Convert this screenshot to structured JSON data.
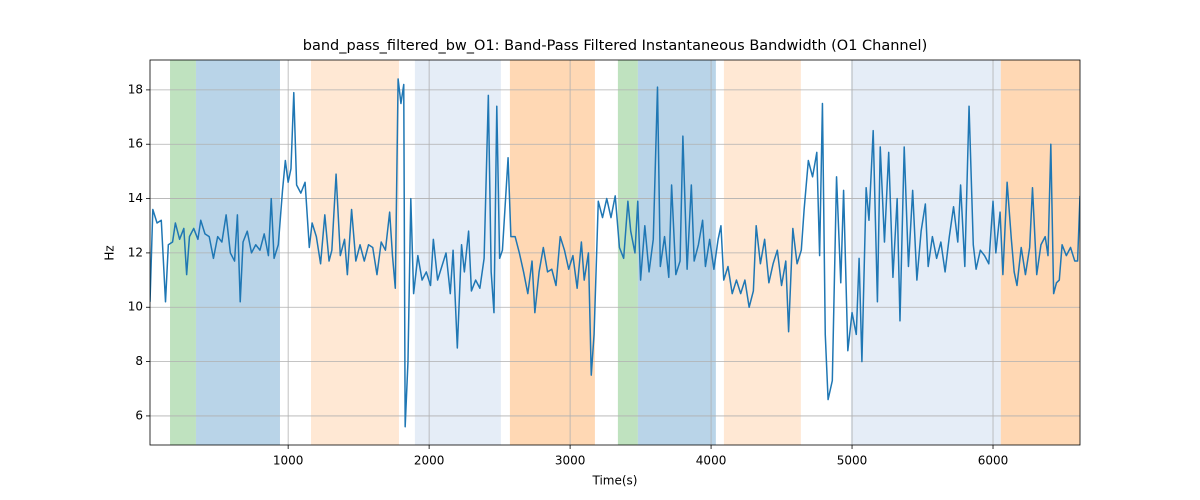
{
  "chart_data": {
    "type": "line",
    "title": "band_pass_filtered_bw_O1: Band-Pass Filtered Instantaneous Bandwidth (O1 Channel)",
    "xlabel": "Time(s)",
    "ylabel": "Hz",
    "color": "#1f77b4",
    "grid": true,
    "xlim": [
      20,
      6617
    ],
    "ylim": [
      4.93,
      19.1
    ],
    "xticks": [
      1000,
      2000,
      3000,
      4000,
      5000,
      6000
    ],
    "yticks": [
      6,
      8,
      10,
      12,
      14,
      16,
      18
    ],
    "spans": [
      {
        "start": 162,
        "end": 346,
        "color": "#bfe2bf"
      },
      {
        "start": 346,
        "end": 942,
        "color": "#b9d4e8"
      },
      {
        "start": 1162,
        "end": 1786,
        "color": "#ffe8d4"
      },
      {
        "start": 1899,
        "end": 2509,
        "color": "#e5edf7"
      },
      {
        "start": 2573,
        "end": 3176,
        "color": "#ffd8b4"
      },
      {
        "start": 3339,
        "end": 3481,
        "color": "#bfe2bf"
      },
      {
        "start": 3481,
        "end": 4034,
        "color": "#b9d4e8"
      },
      {
        "start": 4091,
        "end": 4637,
        "color": "#ffe8d4"
      },
      {
        "start": 4992,
        "end": 6055,
        "color": "#e5edf7"
      },
      {
        "start": 6055,
        "end": 6617,
        "color": "#ffd8b4"
      }
    ],
    "x": [
      20,
      40,
      70,
      100,
      130,
      150,
      180,
      200,
      230,
      260,
      280,
      300,
      330,
      360,
      380,
      410,
      440,
      470,
      500,
      530,
      560,
      590,
      620,
      640,
      660,
      680,
      710,
      740,
      770,
      800,
      830,
      860,
      880,
      900,
      930,
      960,
      980,
      1000,
      1020,
      1040,
      1060,
      1090,
      1120,
      1150,
      1170,
      1200,
      1230,
      1260,
      1290,
      1310,
      1340,
      1370,
      1400,
      1420,
      1450,
      1480,
      1510,
      1540,
      1570,
      1600,
      1630,
      1660,
      1690,
      1720,
      1740,
      1760,
      1780,
      1800,
      1820,
      1830,
      1850,
      1870,
      1890,
      1920,
      1950,
      1980,
      2010,
      2030,
      2060,
      2090,
      2120,
      2150,
      2170,
      2200,
      2230,
      2250,
      2280,
      2300,
      2330,
      2360,
      2390,
      2420,
      2440,
      2460,
      2480,
      2500,
      2520,
      2560,
      2580,
      2610,
      2640,
      2670,
      2700,
      2730,
      2750,
      2780,
      2810,
      2840,
      2870,
      2900,
      2930,
      2960,
      2990,
      3020,
      3050,
      3080,
      3100,
      3130,
      3150,
      3170,
      3200,
      3230,
      3260,
      3290,
      3320,
      3350,
      3380,
      3410,
      3430,
      3460,
      3480,
      3500,
      3530,
      3560,
      3590,
      3620,
      3640,
      3670,
      3700,
      3720,
      3750,
      3780,
      3800,
      3830,
      3860,
      3880,
      3910,
      3940,
      3960,
      3990,
      4020,
      4050,
      4070,
      4090,
      4120,
      4150,
      4180,
      4210,
      4240,
      4270,
      4300,
      4320,
      4350,
      4380,
      4410,
      4440,
      4470,
      4500,
      4530,
      4550,
      4580,
      4610,
      4640,
      4660,
      4690,
      4720,
      4750,
      4770,
      4790,
      4810,
      4830,
      4860,
      4890,
      4920,
      4940,
      4970,
      5000,
      5030,
      5050,
      5070,
      5100,
      5120,
      5150,
      5180,
      5200,
      5230,
      5260,
      5290,
      5320,
      5340,
      5370,
      5400,
      5430,
      5460,
      5490,
      5520,
      5540,
      5570,
      5600,
      5630,
      5660,
      5690,
      5720,
      5750,
      5770,
      5800,
      5830,
      5860,
      5880,
      5910,
      5940,
      5970,
      6000,
      6020,
      6050,
      6070,
      6100,
      6130,
      6150,
      6170,
      6200,
      6230,
      6260,
      6280,
      6310,
      6340,
      6370,
      6390,
      6410,
      6430,
      6450,
      6470,
      6490,
      6520,
      6550,
      6580,
      6600,
      6617
    ],
    "values": [
      10.2,
      13.6,
      13.1,
      13.2,
      10.2,
      12.3,
      12.4,
      13.1,
      12.5,
      12.9,
      11.2,
      12.6,
      12.9,
      12.5,
      13.2,
      12.7,
      12.6,
      11.8,
      12.6,
      12.4,
      13.4,
      12.0,
      11.7,
      13.4,
      10.2,
      12.4,
      12.8,
      12.0,
      12.3,
      12.1,
      12.7,
      11.9,
      14.0,
      11.8,
      12.3,
      14.3,
      15.4,
      14.6,
      15.1,
      17.9,
      14.5,
      14.2,
      14.6,
      12.2,
      13.1,
      12.6,
      11.6,
      13.4,
      11.7,
      12.1,
      14.9,
      11.9,
      12.5,
      11.2,
      13.6,
      11.7,
      12.3,
      11.7,
      12.3,
      12.2,
      11.2,
      12.4,
      12.1,
      13.5,
      11.9,
      10.7,
      18.4,
      17.5,
      18.2,
      5.6,
      8.0,
      14.0,
      10.5,
      11.9,
      11.0,
      11.3,
      10.8,
      12.5,
      11.0,
      11.5,
      12.0,
      10.5,
      12.1,
      8.5,
      12.3,
      11.3,
      12.8,
      10.6,
      11.0,
      10.7,
      11.8,
      17.8,
      11.3,
      9.8,
      17.4,
      11.8,
      12.1,
      15.5,
      12.6,
      12.6,
      12.0,
      11.3,
      10.5,
      11.7,
      9.8,
      11.3,
      12.2,
      11.3,
      11.4,
      10.8,
      12.6,
      12.1,
      11.4,
      11.9,
      10.7,
      12.4,
      11.0,
      12.0,
      7.5,
      9.0,
      13.9,
      13.3,
      14.0,
      13.3,
      14.1,
      12.2,
      11.8,
      13.9,
      12.8,
      12.0,
      13.9,
      11.0,
      13.0,
      11.3,
      12.5,
      18.1,
      11.5,
      12.6,
      11.1,
      14.5,
      11.2,
      11.7,
      16.3,
      11.4,
      14.5,
      11.7,
      12.3,
      13.2,
      11.5,
      12.5,
      11.4,
      12.5,
      13.0,
      11.0,
      11.5,
      10.5,
      11.0,
      10.5,
      11.0,
      10.0,
      10.6,
      13.0,
      11.6,
      12.5,
      10.9,
      11.6,
      12.1,
      10.8,
      11.7,
      9.1,
      12.9,
      11.6,
      12.1,
      13.6,
      15.4,
      14.8,
      15.7,
      11.9,
      17.5,
      9.0,
      6.6,
      7.3,
      14.8,
      10.9,
      14.3,
      8.4,
      9.8,
      9.0,
      11.8,
      8.0,
      14.4,
      13.2,
      16.5,
      10.2,
      15.9,
      12.4,
      15.7,
      11.1,
      14.0,
      9.5,
      15.9,
      11.5,
      14.3,
      11.0,
      12.8,
      13.8,
      11.5,
      12.6,
      11.8,
      12.4,
      11.3,
      12.6,
      13.7,
      12.4,
      14.5,
      11.5,
      17.4,
      12.3,
      11.4,
      12.1,
      11.9,
      11.6,
      13.9,
      12.0,
      13.5,
      11.2,
      14.6,
      12.5,
      11.3,
      10.8,
      12.2,
      11.2,
      12.2,
      14.4,
      11.2,
      12.3,
      12.6,
      11.9,
      16.0,
      10.5,
      10.9,
      11.0,
      12.3,
      11.9,
      12.2,
      11.7,
      11.7,
      14.1
    ]
  }
}
